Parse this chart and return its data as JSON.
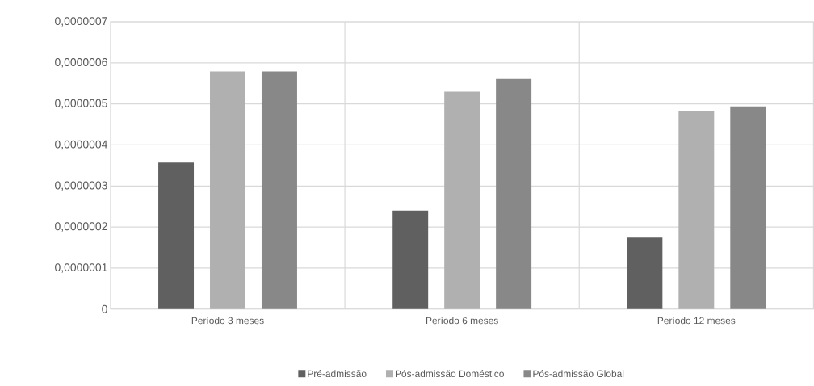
{
  "chart_data": {
    "type": "bar",
    "categories": [
      "Período 3 meses",
      "Período 6 meses",
      "Período 12 meses"
    ],
    "series": [
      {
        "name": "Pré-admissão",
        "color": "#606060",
        "values": [
          3.57e-07,
          2.4e-07,
          1.74e-07
        ]
      },
      {
        "name": "Pós-admissão Doméstico",
        "color": "#b0b0b0",
        "values": [
          5.79e-07,
          5.3e-07,
          4.83e-07
        ]
      },
      {
        "name": "Pós-admissão Global",
        "color": "#888888",
        "values": [
          5.79e-07,
          5.61e-07,
          4.94e-07
        ]
      }
    ],
    "ylim": [
      0,
      7e-07
    ],
    "yticks": [
      0,
      {
        "value": 1e-07,
        "label": "0,0000001"
      },
      {
        "value": 2e-07,
        "label": "0,0000002"
      },
      {
        "value": 3e-07,
        "label": "0,0000003"
      },
      {
        "value": 4e-07,
        "label": "0,0000004"
      },
      {
        "value": 5e-07,
        "label": "0,0000005"
      },
      {
        "value": 6e-07,
        "label": "0,0000006"
      },
      {
        "value": 7e-07,
        "label": "0,0000007"
      }
    ],
    "grid": true,
    "legend": "bottom"
  }
}
